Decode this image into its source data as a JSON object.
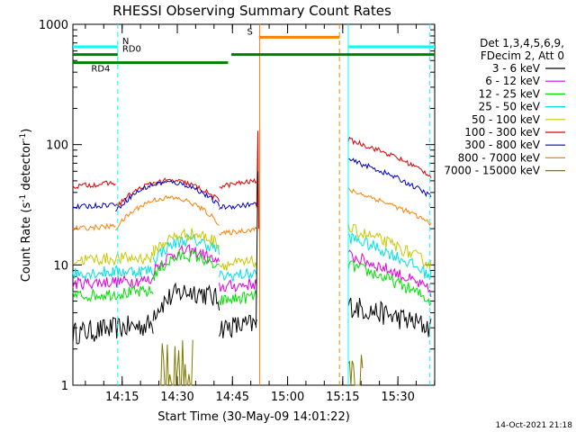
{
  "chart_data": {
    "type": "line",
    "title": "RHESSI Observing Summary Count Rates",
    "xlabel": "Start Time (30-May-09 14:01:22)",
    "ylabel_main": "Count Rate (s",
    "ylabel_sup1": "-1",
    "ylabel_mid": " detector",
    "ylabel_sup2": "-1",
    "ylabel_end": ")",
    "yscale": "log",
    "ylim": [
      1,
      1000
    ],
    "xlim_minutes": [
      14.0267,
      15.6667
    ],
    "x_ticks": [
      {
        "label": "14:15",
        "t": 14.25
      },
      {
        "label": "14:30",
        "t": 14.5
      },
      {
        "label": "14:45",
        "t": 14.75
      },
      {
        "label": "15:00",
        "t": 15.0
      },
      {
        "label": "15:15",
        "t": 15.25
      },
      {
        "label": "15:30",
        "t": 15.5
      }
    ],
    "y_ticks": [
      {
        "label": "1",
        "v": 1
      },
      {
        "label": "10",
        "v": 10
      },
      {
        "label": "100",
        "v": 100
      },
      {
        "label": "1000",
        "v": 1000
      }
    ],
    "legend": {
      "header1": "Det 1,3,4,5,6,9,",
      "header2": "FDecim 2, Att 0",
      "placement": "right"
    },
    "series": [
      {
        "name": "3 - 6 keV",
        "color": "#000000",
        "segments": [
          {
            "t0": 14.0267,
            "t1": 14.39,
            "v0": 2.7,
            "v1": 3.2
          },
          {
            "t0": 14.39,
            "t1": 14.69,
            "v0": 4.0,
            "v1": 5.0,
            "peak": 6.5
          },
          {
            "t0": 14.69,
            "t1": 14.86,
            "v0": 3.0,
            "v1": 3.2
          },
          {
            "t0": 15.275,
            "t1": 15.65,
            "v0": 4.6,
            "v1": 3.0
          }
        ]
      },
      {
        "name": "6 - 12 keV",
        "color": "#e000e0",
        "segments": [
          {
            "t0": 14.0267,
            "t1": 14.39,
            "v0": 7.0,
            "v1": 7.5
          },
          {
            "t0": 14.39,
            "t1": 14.69,
            "v0": 9.0,
            "v1": 10.0,
            "peak": 13.5
          },
          {
            "t0": 14.69,
            "t1": 14.86,
            "v0": 6.5,
            "v1": 7.0
          },
          {
            "t0": 15.275,
            "t1": 15.65,
            "v0": 12.0,
            "v1": 6.0
          }
        ]
      },
      {
        "name": "12 - 25 keV",
        "color": "#00e000",
        "segments": [
          {
            "t0": 14.0267,
            "t1": 14.39,
            "v0": 5.5,
            "v1": 6.0
          },
          {
            "t0": 14.39,
            "t1": 14.69,
            "v0": 8.0,
            "v1": 9.0,
            "peak": 12.5
          },
          {
            "t0": 14.69,
            "t1": 14.86,
            "v0": 5.0,
            "v1": 5.5
          },
          {
            "t0": 15.275,
            "t1": 15.65,
            "v0": 10.0,
            "v1": 5.0
          }
        ]
      },
      {
        "name": "25 - 50 keV",
        "color": "#00e0e0",
        "segments": [
          {
            "t0": 14.0267,
            "t1": 14.39,
            "v0": 8.5,
            "v1": 9.0
          },
          {
            "t0": 14.39,
            "t1": 14.69,
            "v0": 11.0,
            "v1": 13.0,
            "peak": 17.0
          },
          {
            "t0": 14.69,
            "t1": 14.86,
            "v0": 8.0,
            "v1": 8.5
          },
          {
            "t0": 15.275,
            "t1": 15.65,
            "v0": 17.0,
            "v1": 8.0
          }
        ]
      },
      {
        "name": "50 - 100 keV",
        "color": "#c8c800",
        "segments": [
          {
            "t0": 14.0267,
            "t1": 14.39,
            "v0": 11.0,
            "v1": 11.5
          },
          {
            "t0": 14.39,
            "t1": 14.69,
            "v0": 13.0,
            "v1": 15.0,
            "peak": 19.0
          },
          {
            "t0": 14.69,
            "t1": 14.86,
            "v0": 10.0,
            "v1": 10.5
          },
          {
            "t0": 15.275,
            "t1": 15.65,
            "v0": 20.0,
            "v1": 10.0
          }
        ]
      },
      {
        "name": "100 - 300 keV",
        "color": "#e00000",
        "segments": [
          {
            "t0": 14.0267,
            "t1": 14.22,
            "v0": 45.0,
            "v1": 48.0
          },
          {
            "t0": 14.22,
            "t1": 14.69,
            "v0": 30.0,
            "v1": 34.0,
            "peak": 52.0
          },
          {
            "t0": 14.69,
            "t1": 14.86,
            "v0": 45.0,
            "v1": 50.0
          },
          {
            "t0": 15.275,
            "t1": 15.65,
            "v0": 110.0,
            "v1": 55.0
          }
        ]
      },
      {
        "name": "300 - 800 keV",
        "color": "#0000c8",
        "segments": [
          {
            "t0": 14.0267,
            "t1": 14.22,
            "v0": 30.0,
            "v1": 32.0
          },
          {
            "t0": 14.22,
            "t1": 14.69,
            "v0": 28.0,
            "v1": 31.0,
            "peak": 50.0
          },
          {
            "t0": 14.69,
            "t1": 14.86,
            "v0": 30.0,
            "v1": 32.0
          },
          {
            "t0": 15.275,
            "t1": 15.65,
            "v0": 75.0,
            "v1": 37.0
          }
        ]
      },
      {
        "name": "800 - 7000 keV",
        "color": "#ff8000",
        "segments": [
          {
            "t0": 14.0267,
            "t1": 14.22,
            "v0": 20.0,
            "v1": 21.0
          },
          {
            "t0": 14.22,
            "t1": 14.69,
            "v0": 20.0,
            "v1": 22.0,
            "peak": 37.0
          },
          {
            "t0": 14.69,
            "t1": 14.86,
            "v0": 18.0,
            "v1": 20.0
          },
          {
            "t0": 15.275,
            "t1": 15.65,
            "v0": 42.0,
            "v1": 22.0
          }
        ]
      },
      {
        "name": "7000 - 15000 keV",
        "color": "#807800",
        "segments": [
          {
            "t0": 14.42,
            "t1": 14.57,
            "v0": 1.0,
            "v1": 1.0,
            "burst": 2.4
          },
          {
            "t0": 15.275,
            "t1": 15.34,
            "v0": 1.0,
            "v1": 1.0,
            "burst": 1.8
          }
        ]
      }
    ],
    "annotations": {
      "night": {
        "label": "N",
        "color": "#00ffff",
        "v": 650,
        "spans": [
          [
            14.0267,
            14.23
          ],
          [
            15.275,
            15.6667
          ]
        ]
      },
      "saa": {
        "label": "S",
        "color": "#ff8000",
        "v": 780,
        "spans": [
          [
            14.87,
            15.235
          ]
        ]
      },
      "rd0": {
        "label": "RD0",
        "color": "#008000",
        "v": 560,
        "spans": [
          [
            14.0267,
            14.23
          ],
          [
            14.745,
            15.6667
          ]
        ]
      },
      "rd4": {
        "label": "RD4",
        "color": "#008000",
        "v": 480,
        "spans": [
          [
            14.0267,
            14.73
          ]
        ]
      },
      "vlines": [
        {
          "t": 14.23,
          "color": "#00ffff",
          "dash": true
        },
        {
          "t": 14.873,
          "color": "#ff8000",
          "dash": false
        },
        {
          "t": 15.235,
          "color": "#ff8000",
          "dash": true
        },
        {
          "t": 15.275,
          "color": "#00ffff",
          "dash": false
        },
        {
          "t": 15.645,
          "color": "#00ffff",
          "dash": true
        }
      ]
    },
    "spike": {
      "t": 14.865,
      "v": 130
    }
  },
  "footer": {
    "timestamp": "14-Oct-2021 21:18"
  },
  "colors": {
    "frame": "#000000",
    "background": "#ffffff"
  }
}
